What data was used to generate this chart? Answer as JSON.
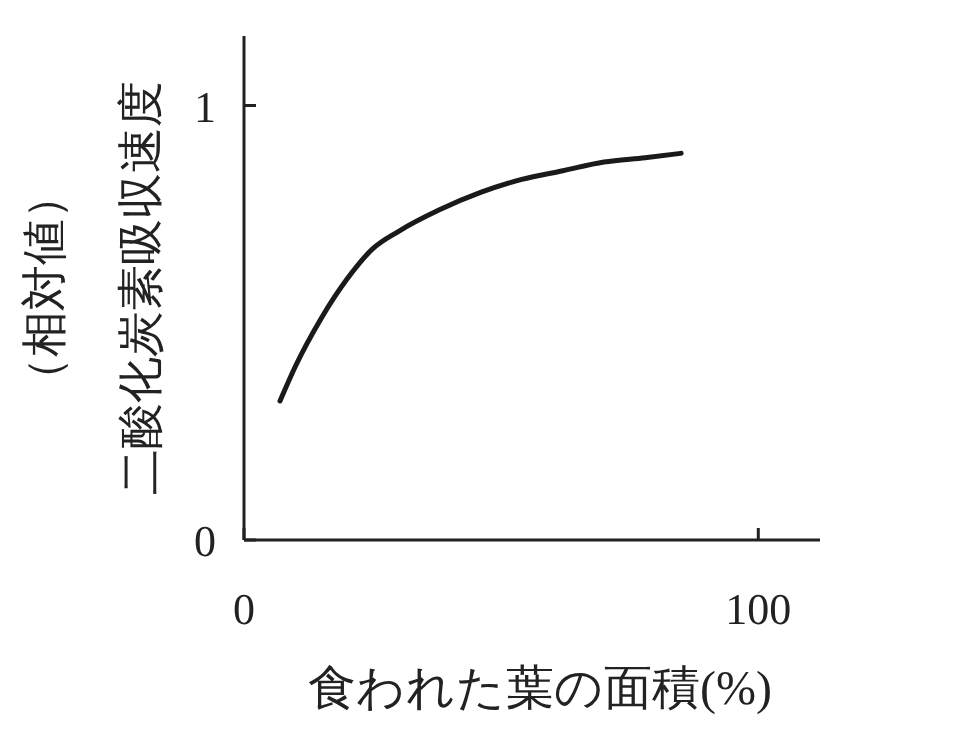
{
  "chart_data": {
    "type": "line",
    "xlabel": "食われた葉の面積(%)",
    "ylabel": "二酸化炭素吸収速度（相対値）",
    "x": [
      7,
      10,
      15,
      20,
      25,
      30,
      38,
      46,
      54,
      62,
      70,
      78,
      85
    ],
    "series": [
      {
        "color": "#1a1a1a",
        "values": [
          0.32,
          0.4,
          0.51,
          0.6,
          0.67,
          0.71,
          0.76,
          0.8,
          0.83,
          0.85,
          0.87,
          0.88,
          0.89
        ]
      }
    ],
    "xlim": [
      0,
      112
    ],
    "ylim": [
      0,
      1.16
    ],
    "xticks": [
      0,
      100
    ],
    "yticks": [
      0,
      1
    ],
    "marker": "none",
    "line_style": "solid"
  }
}
